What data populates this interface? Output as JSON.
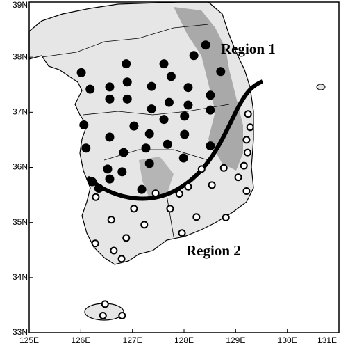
{
  "map": {
    "xlim": [
      125,
      131
    ],
    "ylim": [
      33,
      39
    ],
    "xticks": [
      {
        "value": 125,
        "label": "125E"
      },
      {
        "value": 126,
        "label": "126E"
      },
      {
        "value": 127,
        "label": "127E"
      },
      {
        "value": 128,
        "label": "128E"
      },
      {
        "value": 129,
        "label": "129E"
      },
      {
        "value": 130,
        "label": "130E"
      },
      {
        "value": 131,
        "label": "131E"
      }
    ],
    "yticks": [
      {
        "value": 33,
        "label": "33N"
      },
      {
        "value": 34,
        "label": "34N"
      },
      {
        "value": 35,
        "label": "35N"
      },
      {
        "value": 36,
        "label": "36N"
      },
      {
        "value": 37,
        "label": "37N"
      },
      {
        "value": 38,
        "label": "38N"
      },
      {
        "value": 39,
        "label": "39N"
      }
    ],
    "regions": [
      {
        "label": "Region 1"
      },
      {
        "label": "Region 2"
      }
    ],
    "stations": {
      "region1": {
        "lon": [
          128.42,
          127.61,
          128.19,
          128.71,
          126.88,
          126.01,
          127.75,
          126.56,
          126.9,
          127.37,
          128.08,
          128.51,
          126.18,
          126.56,
          126.9,
          127.71,
          128.08,
          127.37,
          128.51,
          126.06,
          127.03,
          127.61,
          128.01,
          126.56,
          127.33,
          128.01,
          127.68,
          128.51,
          126.1,
          126.83,
          127.26,
          126.52,
          126.8,
          127.33,
          127.99,
          126.22,
          126.56,
          127.18,
          126.35
        ],
        "lat": [
          38.22,
          37.88,
          38.03,
          37.74,
          37.88,
          37.72,
          37.65,
          37.46,
          37.55,
          37.47,
          37.45,
          37.31,
          37.42,
          37.24,
          37.24,
          37.18,
          37.13,
          37.06,
          37.04,
          36.77,
          36.75,
          36.87,
          36.93,
          36.55,
          36.61,
          36.6,
          36.42,
          36.39,
          36.35,
          36.27,
          36.35,
          35.97,
          35.92,
          36.07,
          36.17,
          35.74,
          35.79,
          35.6,
          35.62
        ]
      },
      "region2": {
        "lon": [
          129.24,
          129.28,
          129.21,
          129.23,
          129.16,
          129.05,
          129.21,
          128.77,
          128.34,
          128.08,
          128.54,
          127.91,
          127.45,
          127.73,
          128.24,
          128.81,
          127.03,
          126.29,
          126.59,
          127.23,
          126.28,
          126.88,
          127.96,
          126.64,
          126.79,
          126.47,
          126.43,
          126.8
        ],
        "lat": [
          36.97,
          36.73,
          36.5,
          36.27,
          36.03,
          35.82,
          35.57,
          35.99,
          35.97,
          35.65,
          35.68,
          35.52,
          35.53,
          35.25,
          35.1,
          35.09,
          35.25,
          35.46,
          35.05,
          34.96,
          34.62,
          34.72,
          34.81,
          34.49,
          34.34,
          33.52,
          33.31,
          33.31
        ]
      }
    }
  }
}
